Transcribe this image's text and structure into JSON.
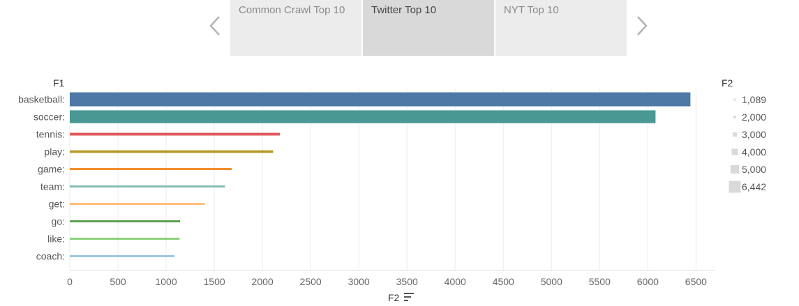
{
  "tabs": [
    {
      "label": "Common Crawl Top 10",
      "active": false
    },
    {
      "label": "Twitter Top 10",
      "active": true
    },
    {
      "label": "NYT Top 10",
      "active": false
    }
  ],
  "icons": {
    "prev": "chevron-left-icon",
    "next": "chevron-right-icon",
    "sort": "sort-descending-icon"
  },
  "chart_data": {
    "type": "bar",
    "orientation": "horizontal",
    "row_field_label": "F1",
    "xlabel": "F2",
    "categories": [
      "basketball:",
      "soccer:",
      "tennis:",
      "play:",
      "game:",
      "team:",
      "get:",
      "go:",
      "like:",
      "coach:"
    ],
    "values": [
      6442,
      6080,
      2180,
      2110,
      1680,
      1610,
      1400,
      1145,
      1140,
      1089
    ],
    "colors": [
      "#4e79a7",
      "#499894",
      "#e15759",
      "#b6992d",
      "#f28e2b",
      "#86bcb6",
      "#ffbe7d",
      "#59a14f",
      "#8cd17d",
      "#9dc9e0"
    ],
    "xlim": [
      0,
      6700
    ],
    "xticks": [
      0,
      500,
      1000,
      1500,
      2000,
      2500,
      3000,
      3500,
      4000,
      4500,
      5000,
      5500,
      6000,
      6500
    ],
    "grid": "vertical",
    "bar_thickness_encodes": "F2",
    "legend": {
      "title": "F2",
      "placement": "right",
      "entries": [
        {
          "label": "1,089",
          "value": 1089
        },
        {
          "label": "2,000",
          "value": 2000
        },
        {
          "label": "3,000",
          "value": 3000
        },
        {
          "label": "4,000",
          "value": 4000
        },
        {
          "label": "5,000",
          "value": 5000
        },
        {
          "label": "6,442",
          "value": 6442
        }
      ],
      "color": "#d9d9d9"
    }
  }
}
